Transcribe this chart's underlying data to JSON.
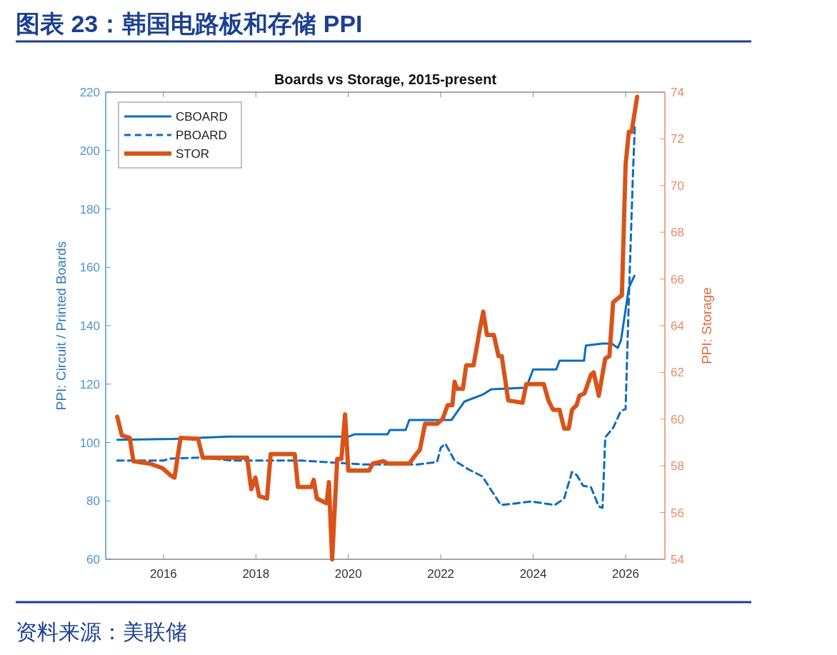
{
  "chart_data": {
    "type": "line",
    "title": "图表 23：韩国电路板和存储 PPI",
    "subtitle": "Boards vs Storage, 2015-present",
    "ylabel": "PPI: Circuit / Printed Boards",
    "y2label": "PPI: Storage",
    "annotations": [
      "资料来源：美联储"
    ],
    "xlim": [
      2014.75,
      2026.85
    ],
    "xticks": [
      2016,
      2018,
      2020,
      2022,
      2024,
      2026
    ],
    "ylim": [
      60,
      220
    ],
    "yticks": [
      60,
      80,
      100,
      120,
      140,
      160,
      180,
      200,
      220
    ],
    "y2lim": [
      54,
      74
    ],
    "y2ticks": [
      54,
      56,
      58,
      60,
      62,
      64,
      66,
      68,
      70,
      72,
      74
    ],
    "legend": "top left",
    "grid": false,
    "series": [
      {
        "name": "CBOARD",
        "color": "#0b6cbf",
        "line_style": "solid",
        "x": [
          2015.0,
          2016.2,
          2017.4,
          2020.0,
          2020.13,
          2020.85,
          2020.9,
          2021.24,
          2021.32,
          2022.23,
          2022.51,
          2022.92,
          2023.09,
          2023.85,
          2024.0,
          2024.5,
          2024.57,
          2025.1,
          2025.14,
          2025.5,
          2025.7,
          2025.83,
          2025.9,
          2026.07,
          2026.19
        ],
        "values": [
          100.9,
          101.2,
          102,
          102,
          102.8,
          102.8,
          104.3,
          104.3,
          107.7,
          107.7,
          114,
          116.5,
          118.2,
          118.8,
          125,
          125,
          128,
          128,
          133.2,
          133.9,
          133.9,
          132.4,
          135,
          153,
          157.1
        ]
      },
      {
        "name": "PBOARD",
        "color": "#0b6cbf",
        "line_style": "dashed",
        "x": [
          2015.0,
          2016.0,
          2016.14,
          2016.8,
          2017.52,
          2019.0,
          2020.0,
          2020.3,
          2021.5,
          2021.92,
          2022.0,
          2022.1,
          2022.3,
          2022.6,
          2022.9,
          2023.1,
          2023.3,
          2023.6,
          2023.96,
          2024.47,
          2024.67,
          2024.84,
          2024.94,
          2025.08,
          2025.25,
          2025.42,
          2025.5,
          2025.56,
          2025.73,
          2025.9,
          2026.0,
          2026.07,
          2026.16,
          2026.2
        ],
        "values": [
          93.8,
          93.8,
          94.5,
          94.8,
          93.8,
          93.8,
          92.8,
          92.5,
          92.5,
          93.3,
          98.2,
          99.6,
          93.8,
          90.8,
          88.4,
          83.5,
          78.6,
          79.1,
          79.8,
          78.6,
          80.8,
          89.9,
          88.9,
          85.2,
          84.7,
          78.1,
          77.6,
          101.8,
          105,
          110.9,
          111.4,
          149.3,
          192.4,
          208.5
        ]
      },
      {
        "name": "STOR",
        "color": "#d95319",
        "line_style": "solid",
        "axis": "y2",
        "x": [
          2015.0,
          2015.1,
          2015.27,
          2015.35,
          2015.7,
          2015.98,
          2016.15,
          2016.24,
          2016.37,
          2016.75,
          2016.85,
          2017.81,
          2017.9,
          2017.99,
          2018.07,
          2018.24,
          2018.32,
          2018.84,
          2018.91,
          2019.2,
          2019.25,
          2019.32,
          2019.53,
          2019.58,
          2019.65,
          2019.76,
          2019.85,
          2019.93,
          2020.0,
          2020.45,
          2020.53,
          2020.76,
          2020.85,
          2021.32,
          2021.43,
          2021.55,
          2021.66,
          2021.92,
          2022.04,
          2022.15,
          2022.25,
          2022.3,
          2022.35,
          2022.48,
          2022.55,
          2022.71,
          2022.85,
          2022.92,
          2023.0,
          2023.15,
          2023.25,
          2023.32,
          2023.46,
          2023.77,
          2023.85,
          2024.23,
          2024.33,
          2024.43,
          2024.57,
          2024.67,
          2024.77,
          2024.84,
          2024.94,
          2025.0,
          2025.11,
          2025.25,
          2025.31,
          2025.42,
          2025.56,
          2025.65,
          2025.73,
          2025.85,
          2025.92,
          2026.0,
          2026.07,
          2026.13,
          2026.25
        ],
        "values": [
          60.1,
          59.3,
          59.2,
          58.2,
          58.1,
          57.9,
          57.6,
          57.5,
          59.2,
          59.15,
          58.35,
          58.35,
          57.0,
          57.5,
          56.7,
          56.6,
          58.5,
          58.5,
          57.1,
          57.1,
          57.4,
          56.6,
          56.4,
          57.3,
          54.0,
          58.3,
          58.3,
          60.2,
          57.8,
          57.8,
          58.1,
          58.2,
          58.1,
          58.1,
          58.4,
          58.7,
          59.8,
          59.8,
          60.0,
          60.6,
          60.6,
          61.6,
          61.3,
          61.3,
          62.3,
          62.3,
          63.9,
          64.6,
          63.6,
          63.6,
          62.7,
          62.7,
          60.8,
          60.7,
          61.5,
          61.5,
          60.8,
          60.4,
          60.4,
          59.6,
          59.6,
          60.4,
          60.6,
          61.0,
          61.1,
          61.9,
          62.0,
          61.0,
          62.6,
          62.7,
          65.0,
          65.2,
          65.3,
          70.9,
          72.3,
          72.3,
          73.8
        ]
      }
    ]
  }
}
